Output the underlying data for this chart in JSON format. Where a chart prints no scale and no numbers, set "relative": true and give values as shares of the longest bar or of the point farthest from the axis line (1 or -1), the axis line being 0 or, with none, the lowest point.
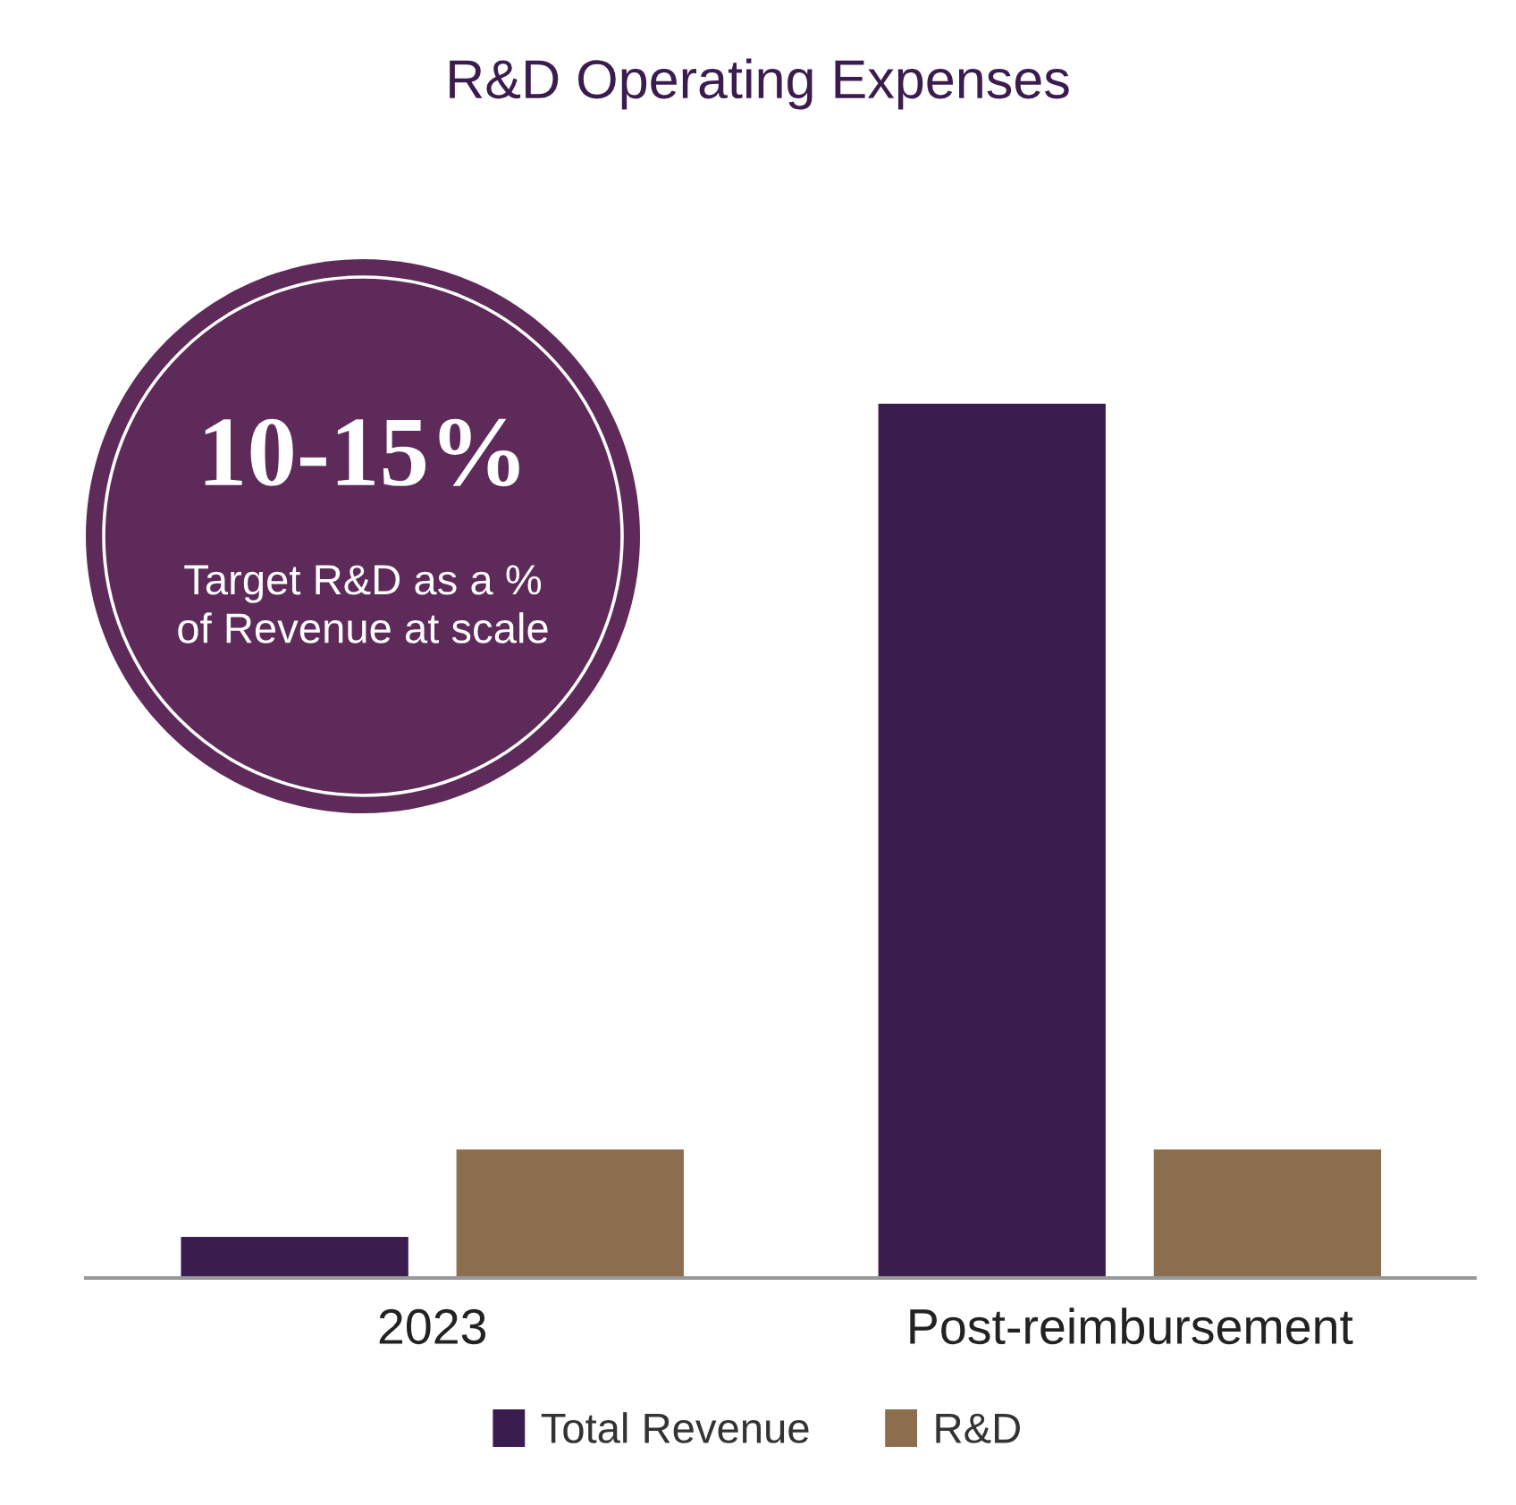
{
  "chart_data": {
    "type": "bar",
    "title": "R&D Operating Expenses",
    "relative": true,
    "categories": [
      "2023",
      "Post-reimbursement"
    ],
    "series": [
      {
        "name": "Total Revenue",
        "color": "#3b1c4f",
        "values": [
          0.047,
          1
        ]
      },
      {
        "name": "R&D",
        "color": "#8c6d4d",
        "values": [
          0.147,
          0.147
        ]
      }
    ],
    "annotations": [
      "10-15%",
      "Target R&D as a % of Revenue at scale"
    ],
    "legend": "bottom",
    "grid": false
  }
}
